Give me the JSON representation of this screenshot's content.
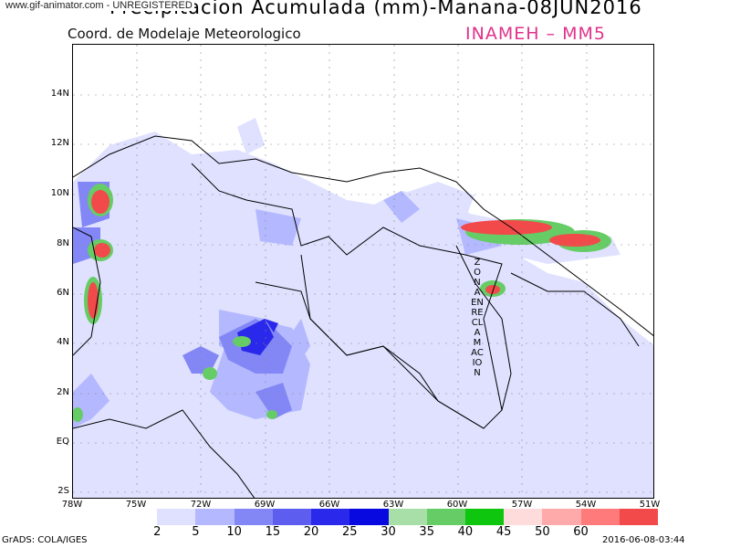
{
  "watermark": "www.gif-animator.com - UNREGISTERED",
  "title": "Precipitacion Acumulada (mm)-Manana-08JUN2016",
  "subtitle": "Coord. de Modelaje Meteorologico",
  "agency": "INAMEH  – MM5",
  "lat_labels": [
    "14N",
    "12N",
    "10N",
    "8N",
    "6N",
    "4N",
    "2N",
    "EQ",
    "2S"
  ],
  "lon_labels": [
    "78W",
    "75W",
    "72W",
    "69W",
    "66W",
    "63W",
    "60W",
    "57W",
    "54W",
    "51W"
  ],
  "zona_label": "ZONA EN RECLAMACION",
  "legend": {
    "labels": [
      "2",
      "5",
      "10",
      "15",
      "20",
      "25",
      "30",
      "35",
      "40",
      "45",
      "50",
      "60"
    ],
    "colors": [
      "#ffffff",
      "#dfe1ff",
      "#b4b8ff",
      "#8387f5",
      "#5d5ef0",
      "#2a28ea",
      "#0808e0",
      "#a8dea8",
      "#66cc66",
      "#0ec60e",
      "#ffdcdc",
      "#ffaaaa",
      "#ff7a7a",
      "#f24a4a"
    ]
  },
  "footer_left": "GrADS: COLA/IGES",
  "footer_right": "2016-06-08-03:44"
}
